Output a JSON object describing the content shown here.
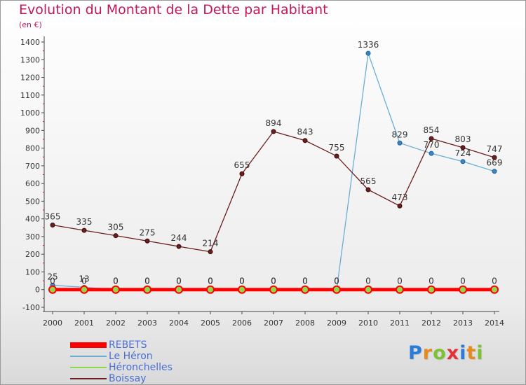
{
  "title": "Evolution du Montant de la Dette par Habitant",
  "subtitle": "(en €)",
  "logo_text": "Proxiti",
  "chart_data": {
    "type": "line",
    "title": "Evolution du Montant de la Dette par Habitant",
    "ylabel": "(en €)",
    "x": [
      2000,
      2001,
      2002,
      2003,
      2004,
      2005,
      2006,
      2007,
      2008,
      2009,
      2010,
      2011,
      2012,
      2013,
      2014
    ],
    "x_labels": [
      "2000",
      "2001",
      "2002",
      "2003",
      "2004",
      "2005",
      "2006",
      "2007",
      "2008",
      "2009",
      "2010",
      "2011",
      "2012",
      "2013",
      "2014"
    ],
    "ylim": [
      -100,
      1400
    ],
    "y_ticks": [
      "-100",
      "0",
      "100",
      "200",
      "300",
      "400",
      "500",
      "600",
      "700",
      "800",
      "900",
      "1000",
      "1100",
      "1200",
      "1300",
      "1400"
    ],
    "grid": false,
    "legend_position": "bottom-left",
    "series": [
      {
        "name": "REBETS",
        "color": "#ff0000",
        "values": [
          0,
          0,
          0,
          0,
          0,
          0,
          0,
          0,
          0,
          0,
          0,
          0,
          0,
          0,
          0
        ],
        "labels": [
          "0",
          "0",
          "0",
          "0",
          "0",
          "0",
          "0",
          "0",
          "0",
          "0",
          "0",
          "0",
          "0",
          "0",
          "0"
        ]
      },
      {
        "name": "Le Héron",
        "color": "#6baed6",
        "values": [
          25,
          13,
          0,
          0,
          0,
          0,
          0,
          0,
          0,
          0,
          1336,
          829,
          770,
          724,
          669
        ],
        "labels": [
          "25",
          "13",
          "0",
          "0",
          "0",
          "0",
          "0",
          "0",
          "0",
          "0",
          "1336",
          "829",
          "770",
          "724",
          "669"
        ]
      },
      {
        "name": "Héronchelles",
        "color": "#90d84a",
        "values": [
          0,
          0,
          0,
          0,
          0,
          0,
          0,
          0,
          0,
          0,
          0,
          0,
          0,
          0,
          0
        ],
        "labels": []
      },
      {
        "name": "Boissay",
        "color": "#6b1e1e",
        "values": [
          365,
          335,
          305,
          275,
          244,
          214,
          655,
          894,
          843,
          755,
          565,
          473,
          854,
          803,
          747
        ],
        "labels": [
          "365",
          "335",
          "305",
          "275",
          "244",
          "214",
          "655",
          "894",
          "843",
          "755",
          "565",
          "473",
          "854",
          "803",
          "747"
        ]
      }
    ]
  }
}
